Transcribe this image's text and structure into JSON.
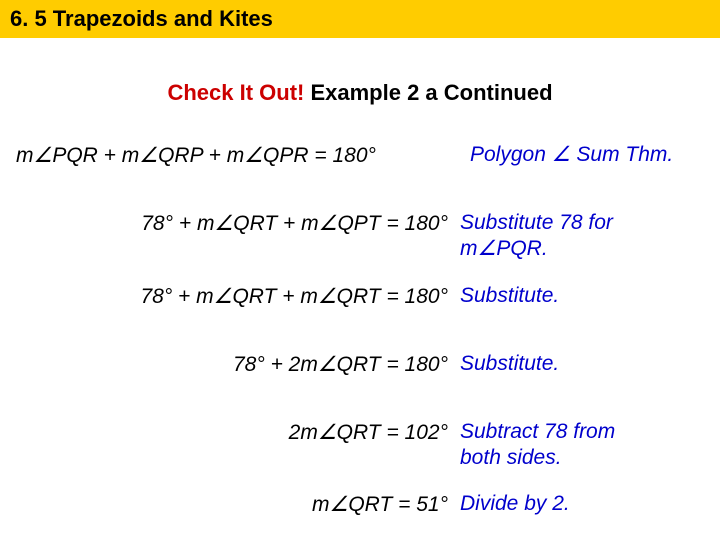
{
  "header": {
    "title": "6. 5 Trapezoids and Kites"
  },
  "subtitle": {
    "red": "Check It Out!",
    "black": " Example 2 a Continued"
  },
  "steps": [
    {
      "equation": "m∠PQR + m∠QRP + m∠QPR = 180°",
      "reason": "Polygon ∠ Sum Thm."
    },
    {
      "equation": "78° + m∠QRT + m∠QPT = 180°",
      "reason_l1": "Substitute 78 for",
      "reason_l2": "m∠PQR."
    },
    {
      "equation": "78° + m∠QRT + m∠QRT = 180°",
      "reason": "Substitute."
    },
    {
      "equation": "78° + 2m∠QRT = 180°",
      "reason": "Substitute."
    },
    {
      "equation": "2m∠QRT = 102°",
      "reason_l1": "Subtract 78 from",
      "reason_l2": "both sides."
    },
    {
      "equation": "m∠QRT = 51°",
      "reason": "Divide by 2."
    }
  ]
}
